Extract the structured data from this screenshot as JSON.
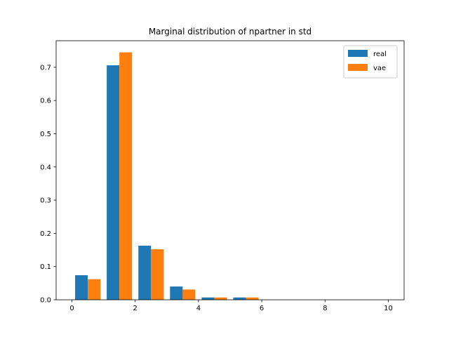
{
  "chart_data": {
    "type": "bar",
    "title": "Marginal distribution of npartner in std",
    "xlabel": "",
    "ylabel": "",
    "xlim": [
      -0.5,
      10.5
    ],
    "ylim": [
      0,
      0.78
    ],
    "xticks": [
      "0",
      "2",
      "4",
      "6",
      "8",
      "10"
    ],
    "yticks": [
      "0.0",
      "0.1",
      "0.2",
      "0.3",
      "0.4",
      "0.5",
      "0.6",
      "0.7"
    ],
    "bin_edges": [
      0,
      1,
      2,
      3,
      4,
      5,
      6,
      7,
      8,
      9,
      10
    ],
    "series": [
      {
        "name": "real",
        "color": "#1f77b4",
        "values": [
          0.074,
          0.706,
          0.163,
          0.04,
          0.007,
          0.007,
          0.0,
          0.0,
          0.0,
          0.0
        ]
      },
      {
        "name": "vae",
        "color": "#ff7f0e",
        "values": [
          0.062,
          0.745,
          0.152,
          0.031,
          0.007,
          0.007,
          0.0,
          0.0,
          0.0,
          0.0
        ]
      }
    ],
    "legend_position": "top-right"
  }
}
